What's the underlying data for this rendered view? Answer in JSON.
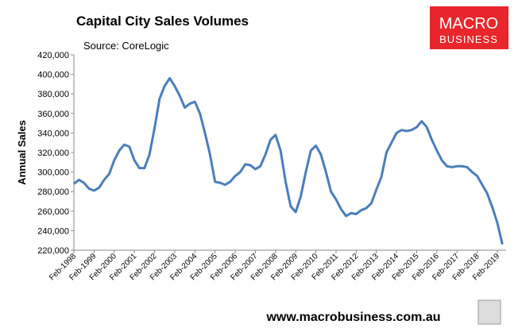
{
  "chart_data": {
    "type": "line",
    "title": "Capital City Sales Volumes",
    "subtitle": "Source: CoreLogic",
    "y_label": "Annual Sales",
    "categories": [
      "Feb-1998",
      null,
      null,
      null,
      "Feb-1999",
      null,
      null,
      null,
      "Feb-2000",
      null,
      null,
      null,
      "Feb-2001",
      null,
      null,
      null,
      "Feb-2002",
      null,
      null,
      null,
      "Feb-2003",
      null,
      null,
      null,
      "Feb-2004",
      null,
      null,
      null,
      "Feb-2005",
      null,
      null,
      null,
      "Feb-2006",
      null,
      null,
      null,
      "Feb-2007",
      null,
      null,
      null,
      "Feb-2008",
      null,
      null,
      null,
      "Feb-2009",
      null,
      null,
      null,
      "Feb-2010",
      null,
      null,
      null,
      "Feb-2011",
      null,
      null,
      null,
      "Feb-2012",
      null,
      null,
      null,
      "Feb-2013",
      null,
      null,
      null,
      "Feb-2014",
      null,
      null,
      null,
      "Feb-2015",
      null,
      null,
      null,
      "Feb-2016",
      null,
      null,
      null,
      "Feb-2017",
      null,
      null,
      null,
      "Feb-2018",
      null,
      null,
      null,
      "Feb-2019",
      null
    ],
    "series": [
      {
        "name": "Annual Sales",
        "color": "#4a7ebb",
        "values": [
          288000,
          292000,
          289000,
          283000,
          281000,
          284000,
          292000,
          298000,
          312000,
          322000,
          328000,
          326000,
          312000,
          304000,
          304000,
          318000,
          345000,
          375000,
          388000,
          396000,
          388000,
          378000,
          366000,
          370000,
          372000,
          360000,
          340000,
          318000,
          290000,
          289000,
          287000,
          290000,
          296000,
          300000,
          308000,
          307000,
          303000,
          306000,
          318000,
          333000,
          338000,
          322000,
          290000,
          265000,
          259000,
          275000,
          300000,
          322000,
          327000,
          318000,
          300000,
          280000,
          272000,
          262000,
          255000,
          258000,
          257000,
          261000,
          263000,
          268000,
          282000,
          295000,
          320000,
          330000,
          340000,
          343000,
          342000,
          343000,
          346000,
          352000,
          346000,
          333000,
          322000,
          312000,
          306000,
          305000,
          306000,
          306000,
          305000,
          300000,
          296000,
          287000,
          278000,
          264000,
          248000,
          226000
        ]
      }
    ],
    "ylim": [
      220000,
      420000
    ],
    "yticks": [
      {
        "value": 220000,
        "label": "220,000"
      },
      {
        "value": 240000,
        "label": "240,000"
      },
      {
        "value": 260000,
        "label": "260,000"
      },
      {
        "value": 280000,
        "label": "280,000"
      },
      {
        "value": 300000,
        "label": "300,000"
      },
      {
        "value": 320000,
        "label": "320,000"
      },
      {
        "value": 340000,
        "label": "340,000"
      },
      {
        "value": 360000,
        "label": "360,000"
      },
      {
        "value": 380000,
        "label": "380,000"
      },
      {
        "value": 400000,
        "label": "400,000"
      },
      {
        "value": 420000,
        "label": "420,000"
      }
    ]
  },
  "logo": {
    "line1": "MACRO",
    "line2": "BUSINESS"
  },
  "footer": "www.macrobusiness.com.au"
}
